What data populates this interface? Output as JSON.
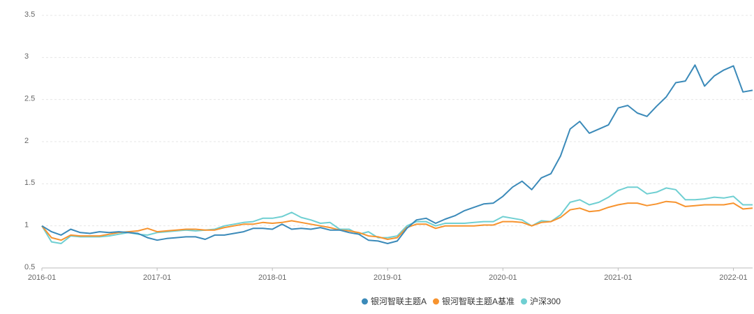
{
  "chart_data": {
    "type": "line",
    "x": [
      "2016-01",
      "2016-02",
      "2016-03",
      "2016-04",
      "2016-05",
      "2016-06",
      "2016-07",
      "2016-08",
      "2016-09",
      "2016-10",
      "2016-11",
      "2016-12",
      "2017-01",
      "2017-02",
      "2017-03",
      "2017-04",
      "2017-05",
      "2017-06",
      "2017-07",
      "2017-08",
      "2017-09",
      "2017-10",
      "2017-11",
      "2017-12",
      "2018-01",
      "2018-02",
      "2018-03",
      "2018-04",
      "2018-05",
      "2018-06",
      "2018-07",
      "2018-08",
      "2018-09",
      "2018-10",
      "2018-11",
      "2018-12",
      "2019-01",
      "2019-02",
      "2019-03",
      "2019-04",
      "2019-05",
      "2019-06",
      "2019-07",
      "2019-08",
      "2019-09",
      "2019-10",
      "2019-11",
      "2019-12",
      "2020-01",
      "2020-02",
      "2020-03",
      "2020-04",
      "2020-05",
      "2020-06",
      "2020-07",
      "2020-08",
      "2020-09",
      "2020-10",
      "2020-11",
      "2020-12",
      "2021-01",
      "2021-02",
      "2021-03",
      "2021-04",
      "2021-05",
      "2021-06",
      "2021-07",
      "2021-08",
      "2021-09",
      "2021-10",
      "2021-11",
      "2021-12",
      "2022-01",
      "2022-02",
      "2022-03"
    ],
    "series": [
      {
        "name": "银河智联主题A",
        "color": "#3b8ab9",
        "values": [
          1.0,
          0.93,
          0.89,
          0.96,
          0.92,
          0.91,
          0.93,
          0.92,
          0.93,
          0.92,
          0.91,
          0.86,
          0.83,
          0.85,
          0.86,
          0.87,
          0.87,
          0.84,
          0.89,
          0.89,
          0.91,
          0.93,
          0.97,
          0.97,
          0.96,
          1.02,
          0.96,
          0.97,
          0.96,
          0.98,
          0.95,
          0.95,
          0.92,
          0.9,
          0.83,
          0.82,
          0.79,
          0.82,
          0.97,
          1.07,
          1.09,
          1.03,
          1.08,
          1.12,
          1.18,
          1.22,
          1.26,
          1.27,
          1.35,
          1.46,
          1.53,
          1.43,
          1.57,
          1.62,
          1.83,
          2.15,
          2.24,
          2.1,
          2.15,
          2.2,
          2.4,
          2.43,
          2.34,
          2.3,
          2.42,
          2.53,
          2.7,
          2.72,
          2.91,
          2.66,
          2.78,
          2.85,
          2.9,
          2.59,
          2.61
        ]
      },
      {
        "name": "银河智联主题A基准",
        "color": "#f7932e",
        "values": [
          1.0,
          0.86,
          0.83,
          0.89,
          0.88,
          0.88,
          0.88,
          0.9,
          0.92,
          0.93,
          0.94,
          0.97,
          0.93,
          0.94,
          0.95,
          0.96,
          0.96,
          0.95,
          0.95,
          0.98,
          1.0,
          1.02,
          1.02,
          1.04,
          1.03,
          1.04,
          1.06,
          1.04,
          1.02,
          1.0,
          0.98,
          0.95,
          0.94,
          0.92,
          0.88,
          0.87,
          0.84,
          0.86,
          0.98,
          1.02,
          1.02,
          0.97,
          1.0,
          1.0,
          1.0,
          1.0,
          1.01,
          1.01,
          1.05,
          1.05,
          1.04,
          1.0,
          1.04,
          1.05,
          1.1,
          1.19,
          1.21,
          1.17,
          1.18,
          1.22,
          1.25,
          1.27,
          1.27,
          1.24,
          1.26,
          1.29,
          1.28,
          1.23,
          1.24,
          1.25,
          1.25,
          1.25,
          1.27,
          1.2,
          1.21
        ]
      },
      {
        "name": "沪深300",
        "color": "#6fcfd2",
        "values": [
          1.0,
          0.81,
          0.79,
          0.88,
          0.87,
          0.87,
          0.87,
          0.88,
          0.9,
          0.92,
          0.9,
          0.89,
          0.92,
          0.93,
          0.94,
          0.95,
          0.94,
          0.95,
          0.96,
          1.0,
          1.02,
          1.04,
          1.05,
          1.09,
          1.09,
          1.11,
          1.16,
          1.1,
          1.07,
          1.03,
          1.04,
          0.96,
          0.96,
          0.9,
          0.93,
          0.86,
          0.86,
          0.88,
          1.0,
          1.05,
          1.05,
          1.0,
          1.03,
          1.03,
          1.03,
          1.04,
          1.05,
          1.05,
          1.11,
          1.09,
          1.07,
          1.0,
          1.06,
          1.05,
          1.13,
          1.28,
          1.31,
          1.25,
          1.28,
          1.34,
          1.42,
          1.46,
          1.46,
          1.38,
          1.4,
          1.45,
          1.43,
          1.31,
          1.31,
          1.32,
          1.34,
          1.33,
          1.35,
          1.25,
          1.25
        ]
      }
    ],
    "xlim": [
      "2016-01",
      "2022-03"
    ],
    "xticks": [
      "2016-01",
      "2017-01",
      "2018-01",
      "2019-01",
      "2020-01",
      "2021-01",
      "2022-01"
    ],
    "ylim": [
      0.5,
      3.5
    ],
    "yticks": [
      0.5,
      1,
      1.5,
      2,
      2.5,
      3,
      3.5
    ],
    "grid": true
  }
}
